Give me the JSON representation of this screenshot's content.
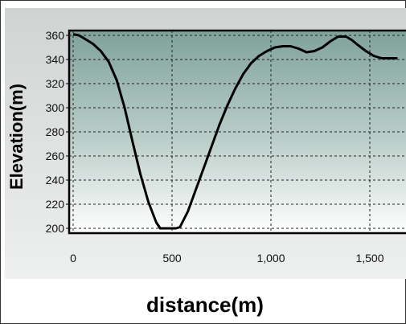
{
  "chart_data": {
    "type": "line",
    "title": "",
    "xlabel": "distance(m)",
    "ylabel": "Elevation(m)",
    "xlim": [
      0,
      1640
    ],
    "ylim": [
      196,
      364
    ],
    "x_ticks": [
      0,
      500,
      1000,
      1500
    ],
    "x_tick_labels": [
      "0",
      "500",
      "1,000",
      "1,500"
    ],
    "y_ticks": [
      200,
      220,
      240,
      260,
      280,
      300,
      320,
      340,
      360
    ],
    "y_tick_labels": [
      "200",
      "220",
      "240",
      "260",
      "280",
      "300",
      "320",
      "340",
      "360"
    ],
    "grid": true,
    "legend": "none",
    "colors": {
      "line": "#000000",
      "plot_top": "#7fa29b",
      "plot_bottom": "#ffffff",
      "panel_top": "#cfd3d2",
      "panel_bottom": "#eef0ef"
    },
    "series": [
      {
        "x": [
          0,
          30,
          60,
          100,
          140,
          180,
          220,
          260,
          300,
          340,
          380,
          420,
          440,
          460,
          480,
          500,
          520,
          540,
          580,
          620,
          660,
          700,
          740,
          780,
          820,
          860,
          900,
          940,
          980,
          1020,
          1060,
          1100,
          1140,
          1180,
          1220,
          1260,
          1300,
          1340,
          1380,
          1410,
          1440,
          1480,
          1520,
          1560,
          1600,
          1640
        ],
        "y": [
          361,
          360,
          357,
          353,
          347,
          338,
          323,
          300,
          272,
          245,
          222,
          205,
          200,
          200,
          200,
          200,
          200,
          201,
          214,
          232,
          250,
          268,
          286,
          302,
          316,
          328,
          337,
          343,
          347,
          350,
          351,
          351,
          349,
          346,
          347,
          350,
          355,
          359,
          359,
          356,
          352,
          347,
          343,
          341,
          341,
          341
        ]
      }
    ]
  }
}
